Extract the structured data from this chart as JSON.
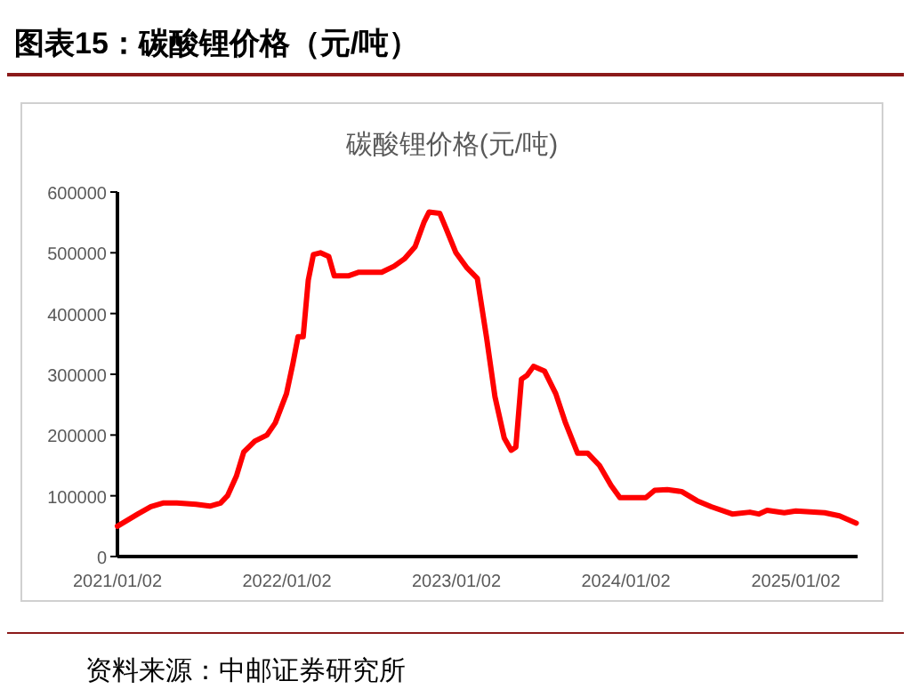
{
  "chart_data": {
    "type": "line",
    "title": "图表15：碳酸锂价格（元/吨）",
    "subtitle": "碳酸锂价格(元/吨)",
    "annotations": [
      "资料来源：中邮证券研究所"
    ],
    "x": [
      "2021-01-02",
      "2021-02-15",
      "2021-03-15",
      "2021-04-10",
      "2021-05-10",
      "2021-06-20",
      "2021-07-20",
      "2021-08-12",
      "2021-08-27",
      "2021-09-15",
      "2021-10-01",
      "2021-10-25",
      "2021-11-20",
      "2021-12-08",
      "2022-01-01",
      "2022-01-15",
      "2022-01-26",
      "2022-02-06",
      "2022-02-17",
      "2022-02-28",
      "2022-03-15",
      "2022-04-02",
      "2022-04-14",
      "2022-05-14",
      "2022-06-06",
      "2022-07-25",
      "2022-08-21",
      "2022-09-12",
      "2022-10-05",
      "2022-10-24",
      "2022-11-04",
      "2022-11-27",
      "2022-12-08",
      "2023-01-01",
      "2023-01-25",
      "2023-02-16",
      "2023-03-08",
      "2023-03-26",
      "2023-04-15",
      "2023-04-30",
      "2023-05-10",
      "2023-05-22",
      "2023-06-03",
      "2023-06-17",
      "2023-07-11",
      "2023-08-04",
      "2023-08-24",
      "2023-09-20",
      "2023-10-12",
      "2023-11-06",
      "2023-12-01",
      "2023-12-20",
      "2024-02-14",
      "2024-03-04",
      "2024-03-31",
      "2024-05-01",
      "2024-06-03",
      "2024-07-04",
      "2024-08-18",
      "2024-09-25",
      "2024-10-14",
      "2024-11-01",
      "2024-12-08",
      "2025-01-02",
      "2025-03-05",
      "2025-04-06",
      "2025-05-12"
    ],
    "series": [
      {
        "color": "#ff0000",
        "values": [
          50000,
          70000,
          82000,
          88000,
          88000,
          86000,
          83000,
          88000,
          100000,
          132000,
          172000,
          190000,
          200000,
          220000,
          268000,
          318000,
          362000,
          362000,
          455000,
          497000,
          500000,
          494000,
          462000,
          462000,
          468000,
          468000,
          478000,
          490000,
          510000,
          550000,
          567000,
          565000,
          545000,
          500000,
          475000,
          458000,
          360000,
          263000,
          195000,
          175000,
          180000,
          292000,
          298000,
          313000,
          305000,
          268000,
          222000,
          170000,
          170000,
          150000,
          117000,
          97000,
          97000,
          109000,
          110000,
          107000,
          92000,
          82000,
          70000,
          73000,
          70000,
          76000,
          72000,
          75000,
          72000,
          67000,
          55000
        ]
      }
    ],
    "xlim": [
      "2021-01-02",
      "2025-05-15"
    ],
    "xticks": [
      {
        "value": "2021-01-02",
        "label": "2021/01/02"
      },
      {
        "value": "2022-01-02",
        "label": "2022/01/02"
      },
      {
        "value": "2023-01-02",
        "label": "2023/01/02"
      },
      {
        "value": "2024-01-02",
        "label": "2024/01/02"
      },
      {
        "value": "2025-01-02",
        "label": "2025/01/02"
      }
    ],
    "ylim": [
      0,
      600000
    ],
    "yticks": [
      0,
      100000,
      200000,
      300000,
      400000,
      500000,
      600000
    ],
    "line_style": "solid",
    "marker": "none",
    "grid": false
  }
}
